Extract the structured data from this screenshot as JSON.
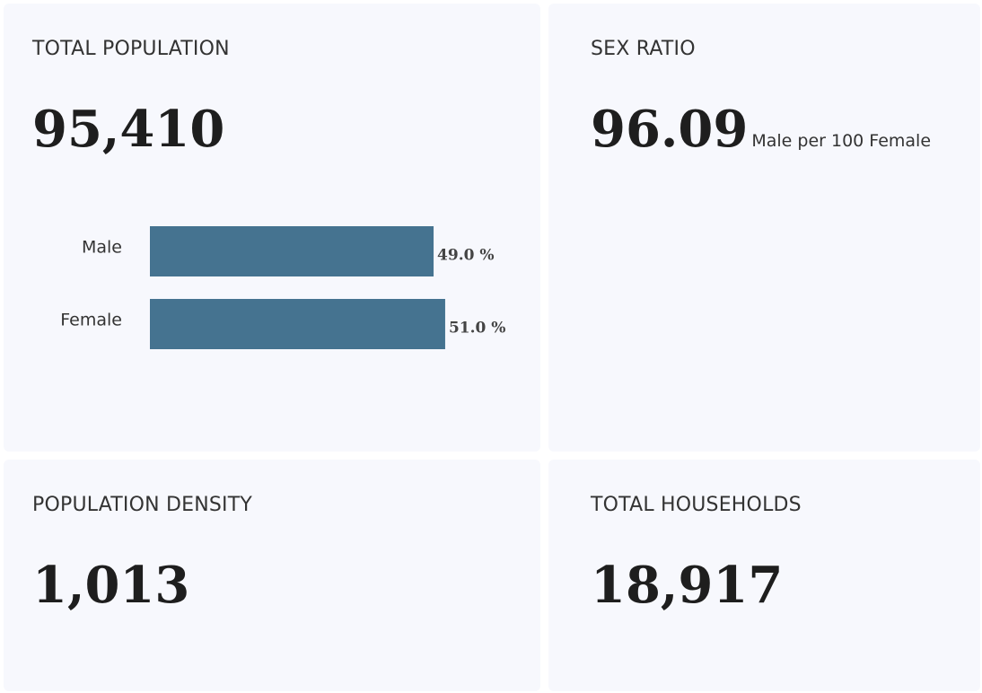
{
  "cards": [
    {
      "title": "TOTAL POPULATION",
      "value": "95,410",
      "chart_data": {
        "type": "bar",
        "orientation": "horizontal",
        "categories": [
          "Male",
          "Female"
        ],
        "values": [
          49.0,
          51.0
        ],
        "value_labels": [
          "49.0 %",
          "51.0 %"
        ],
        "color": "#457390"
      }
    },
    {
      "title": "SEX RATIO",
      "value": "96.09",
      "unit": "Male per 100 Female"
    },
    {
      "title": "POPULATION DENSITY",
      "value": "1,013"
    },
    {
      "title": "TOTAL HOUSEHOLDS",
      "value": "18,917"
    }
  ]
}
